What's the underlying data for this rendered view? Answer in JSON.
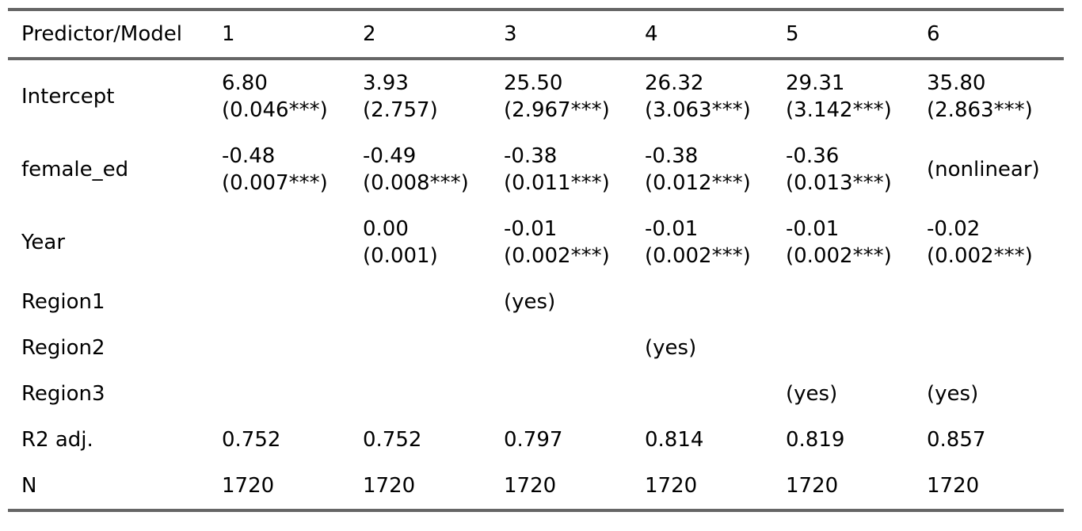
{
  "table": {
    "columns": [
      "Predictor/Model",
      "1",
      "2",
      "3",
      "4",
      "5",
      "6"
    ],
    "rows": [
      {
        "label": "Intercept",
        "cells": [
          [
            "6.80",
            "(0.046***)"
          ],
          [
            "3.93",
            "(2.757)"
          ],
          [
            "25.50",
            "(2.967***)"
          ],
          [
            "26.32",
            "(3.063***)"
          ],
          [
            "29.31",
            "(3.142***)"
          ],
          [
            "35.80",
            "(2.863***)"
          ]
        ]
      },
      {
        "label": "female_ed",
        "cells": [
          [
            "-0.48",
            "(0.007***)"
          ],
          [
            "-0.49",
            "(0.008***)"
          ],
          [
            "-0.38",
            "(0.011***)"
          ],
          [
            "-0.38",
            "(0.012***)"
          ],
          [
            "-0.36",
            "(0.013***)"
          ],
          [
            "(nonlinear)"
          ]
        ]
      },
      {
        "label": "Year",
        "cells": [
          [],
          [
            "0.00",
            "(0.001)"
          ],
          [
            "-0.01",
            "(0.002***)"
          ],
          [
            "-0.01",
            "(0.002***)"
          ],
          [
            "-0.01",
            "(0.002***)"
          ],
          [
            "-0.02",
            "(0.002***)"
          ]
        ]
      },
      {
        "label": "Region1",
        "cells": [
          [],
          [],
          [
            "(yes)"
          ],
          [],
          [],
          []
        ]
      },
      {
        "label": "Region2",
        "cells": [
          [],
          [],
          [],
          [
            "(yes)"
          ],
          [],
          []
        ]
      },
      {
        "label": "Region3",
        "cells": [
          [],
          [],
          [],
          [],
          [
            "(yes)"
          ],
          [
            "(yes)"
          ]
        ]
      },
      {
        "label": "R2 adj.",
        "cells": [
          [
            "0.752"
          ],
          [
            "0.752"
          ],
          [
            "0.797"
          ],
          [
            "0.814"
          ],
          [
            "0.819"
          ],
          [
            "0.857"
          ]
        ]
      },
      {
        "label": "N",
        "cells": [
          [
            "1720"
          ],
          [
            "1720"
          ],
          [
            "1720"
          ],
          [
            "1720"
          ],
          [
            "1720"
          ],
          [
            "1720"
          ]
        ]
      }
    ],
    "colors": {
      "rule": "#666666",
      "text": "#000000",
      "background": "#ffffff"
    }
  }
}
